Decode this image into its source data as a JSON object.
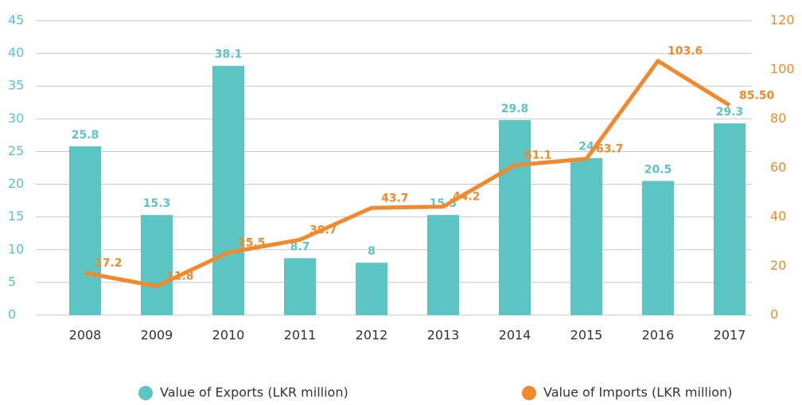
{
  "chart_data": {
    "type": "bar",
    "categories": [
      "2008",
      "2009",
      "2010",
      "2011",
      "2012",
      "2013",
      "2014",
      "2015",
      "2016",
      "2017"
    ],
    "series": [
      {
        "name": "Value of Exports (LKR million)",
        "color": "#5bc5c4",
        "type": "bar",
        "values": [
          25.8,
          15.3,
          38.1,
          8.7,
          8,
          15.3,
          29.8,
          24,
          20.5,
          29.3
        ]
      },
      {
        "name": "Value of Imports (LKR million)",
        "color": "#f08a2c",
        "type": "line",
        "axis": "y2",
        "values": [
          17.2,
          11.8,
          25.5,
          30.7,
          43.7,
          44.2,
          61.1,
          63.7,
          103.6,
          85.5
        ],
        "value_labels": [
          "17.2",
          "11.8",
          "25.5",
          "30.7",
          "43.7",
          "44.2",
          "61.1",
          "63.7",
          "103.6",
          "85.50"
        ]
      }
    ],
    "ylim": [
      0,
      45
    ],
    "yticks": [
      0,
      5,
      10,
      15,
      20,
      25,
      30,
      35,
      40,
      45
    ],
    "y2lim": [
      0,
      120
    ],
    "y2ticks": [
      0,
      20,
      40,
      60,
      80,
      100,
      120
    ],
    "grid": true,
    "legend": "bottom"
  }
}
